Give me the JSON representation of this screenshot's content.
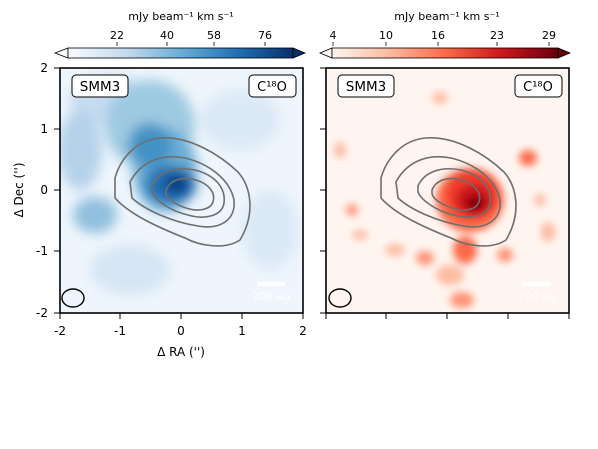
{
  "colorbars": [
    {
      "label": "mJy beam⁻¹ km s⁻¹",
      "ticks": [
        "22",
        "40",
        "58",
        "76"
      ],
      "colormap": "Blues"
    },
    {
      "label": "mJy beam⁻¹ km s⁻¹",
      "ticks": [
        "4",
        "10",
        "16",
        "23",
        "29"
      ],
      "colormap": "Reds"
    }
  ],
  "panels": [
    {
      "source": "SMM3",
      "molecule": "C¹⁸O",
      "scalebar": "200 au"
    },
    {
      "source": "SMM3",
      "molecule": "C¹⁸O",
      "scalebar": "200 au"
    }
  ],
  "axes": {
    "xlabel": "Δ RA ('')",
    "ylabel": "Δ Dec ('')",
    "xticks": [
      "-2",
      "-1",
      "0",
      "1",
      "2"
    ],
    "yticks": [
      "2",
      "1",
      "0",
      "-1",
      "-2"
    ]
  },
  "colors": {
    "blue_peak": "#08306b",
    "red_peak": "#67000d",
    "contour": "#6e6e6e"
  }
}
